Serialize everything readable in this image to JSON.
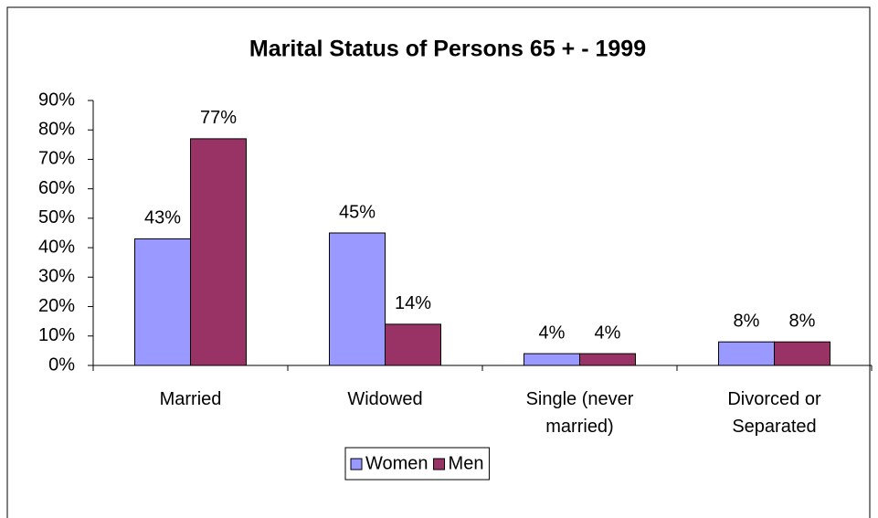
{
  "chart_data": {
    "type": "bar",
    "title": "Marital Status of Persons 65 + - 1999",
    "categories": [
      "Married",
      "Widowed",
      "Single (never\nmarried)",
      "Divorced or\nSeparated"
    ],
    "series": [
      {
        "name": "Women",
        "color": "#9999ff",
        "values": [
          43,
          45,
          4,
          8
        ],
        "value_labels": [
          "43%",
          "45%",
          "4%",
          "8%"
        ]
      },
      {
        "name": "Men",
        "color": "#993366",
        "values": [
          77,
          14,
          4,
          8
        ],
        "value_labels": [
          "77%",
          "14%",
          "4%",
          "8%"
        ]
      }
    ],
    "ylim": [
      0,
      90
    ],
    "yticks": [
      {
        "value": 0,
        "label": "0%"
      },
      {
        "value": 10,
        "label": "10%"
      },
      {
        "value": 20,
        "label": "20%"
      },
      {
        "value": 30,
        "label": "30%"
      },
      {
        "value": 40,
        "label": "40%"
      },
      {
        "value": 50,
        "label": "50%"
      },
      {
        "value": 60,
        "label": "60%"
      },
      {
        "value": 70,
        "label": "70%"
      },
      {
        "value": 80,
        "label": "80%"
      },
      {
        "value": 90,
        "label": "90%"
      }
    ],
    "legend": "bottom"
  }
}
